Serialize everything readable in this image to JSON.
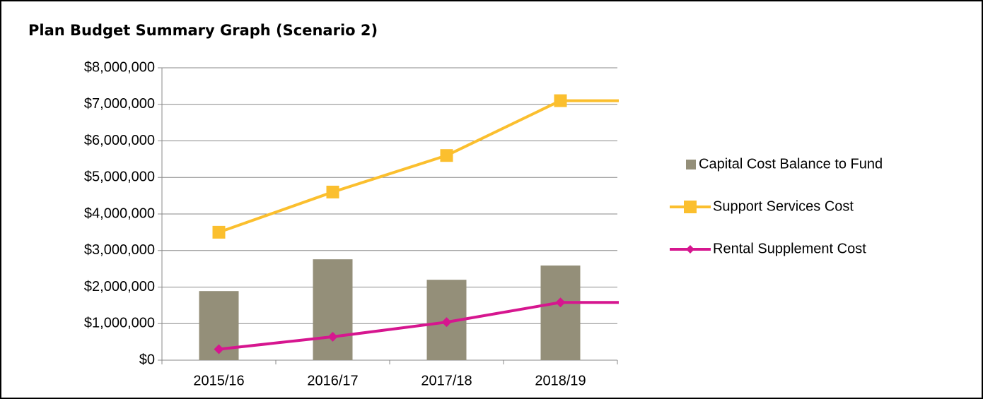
{
  "chart_data": {
    "type": "combo",
    "title": "Plan Budget Summary Graph (Scenario 2)",
    "categories": [
      "2015/16",
      "2016/17",
      "2017/18",
      "2018/19"
    ],
    "series": [
      {
        "name": "Capital Cost Balance to Fund",
        "type": "bar",
        "color": "#948f79",
        "values": [
          1890000,
          2760000,
          2200000,
          2590000
        ]
      },
      {
        "name": "Support Services Cost",
        "type": "line",
        "marker": "square",
        "color": "#fbbf2e",
        "values": [
          3500000,
          4600000,
          5600000,
          7100000
        ]
      },
      {
        "name": "Rental Supplement Cost",
        "type": "line",
        "marker": "diamond",
        "color": "#d6168f",
        "values": [
          300000,
          640000,
          1040000,
          1580000
        ]
      }
    ],
    "ylim": [
      0,
      8000000
    ],
    "yticks": [
      {
        "value": 0,
        "label": "$0"
      },
      {
        "value": 1000000,
        "label": "$1,000,000"
      },
      {
        "value": 2000000,
        "label": "$2,000,000"
      },
      {
        "value": 3000000,
        "label": "$3,000,000"
      },
      {
        "value": 4000000,
        "label": "$4,000,000"
      },
      {
        "value": 5000000,
        "label": "$5,000,000"
      },
      {
        "value": 6000000,
        "label": "$6,000,000"
      },
      {
        "value": 7000000,
        "label": "$7,000,000"
      },
      {
        "value": 8000000,
        "label": "$8,000,000"
      }
    ],
    "grid": true,
    "legend": "right"
  }
}
